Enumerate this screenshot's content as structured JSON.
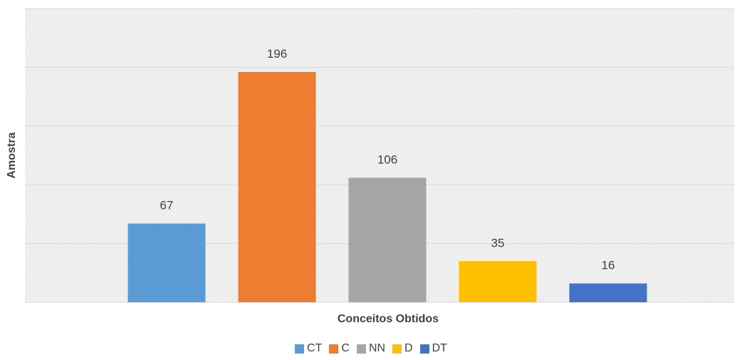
{
  "chart_data": {
    "type": "bar",
    "categories": [
      "CT",
      "C",
      "NN",
      "D",
      "DT"
    ],
    "values": [
      67,
      196,
      106,
      35,
      16
    ],
    "colors": [
      "#5B9BD5",
      "#ED7D31",
      "#A5A5A5",
      "#FFC000",
      "#4472C4"
    ],
    "xlabel": "Conceitos Obtidos",
    "ylabel": "Amostra",
    "ylim": [
      0,
      250
    ],
    "grid": true,
    "legend_position": "bottom"
  }
}
